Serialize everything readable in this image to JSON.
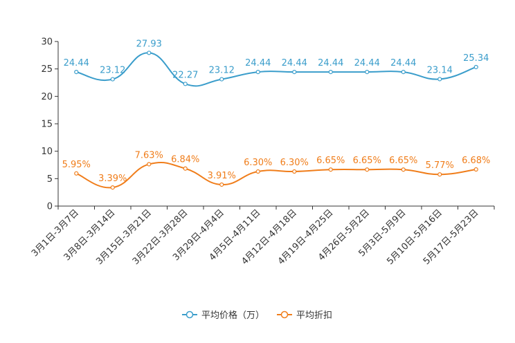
{
  "chart_data": {
    "type": "line",
    "title": "",
    "xlabel": "",
    "ylabel": "",
    "ylim": [
      0,
      30
    ],
    "yticks": [
      0,
      5,
      10,
      15,
      20,
      25,
      30
    ],
    "grid": false,
    "legend_position": "bottom-center",
    "categories": [
      "3月1日-3月7日",
      "3月8日-3月14日",
      "3月15日-3月21日",
      "3月22日-3月28日",
      "3月29日-4月4日",
      "4月5日-4月11日",
      "4月12日-4月18日",
      "4月19日-4月25日",
      "4月26日-5月2日",
      "5月3日-5月9日",
      "5月10日-5月16日",
      "5月17日-5月23日"
    ],
    "series": [
      {
        "name": "平均价格（万）",
        "color": "#3a9dcb",
        "values": [
          24.44,
          23.12,
          27.93,
          22.27,
          23.12,
          24.44,
          24.44,
          24.44,
          24.44,
          24.44,
          23.14,
          25.34
        ],
        "labels": [
          "24.44",
          "23.12",
          "27.93",
          "22.27",
          "23.12",
          "24.44",
          "24.44",
          "24.44",
          "24.44",
          "24.44",
          "23.14",
          "25.34"
        ]
      },
      {
        "name": "平均折扣",
        "color": "#f07d1a",
        "values": [
          5.95,
          3.39,
          7.63,
          6.84,
          3.91,
          6.3,
          6.3,
          6.65,
          6.65,
          6.65,
          5.77,
          6.68
        ],
        "labels": [
          "5.95%",
          "3.39%",
          "7.63%",
          "6.84%",
          "3.91%",
          "6.30%",
          "6.30%",
          "6.65%",
          "6.65%",
          "6.65%",
          "5.77%",
          "6.68%"
        ]
      }
    ]
  }
}
